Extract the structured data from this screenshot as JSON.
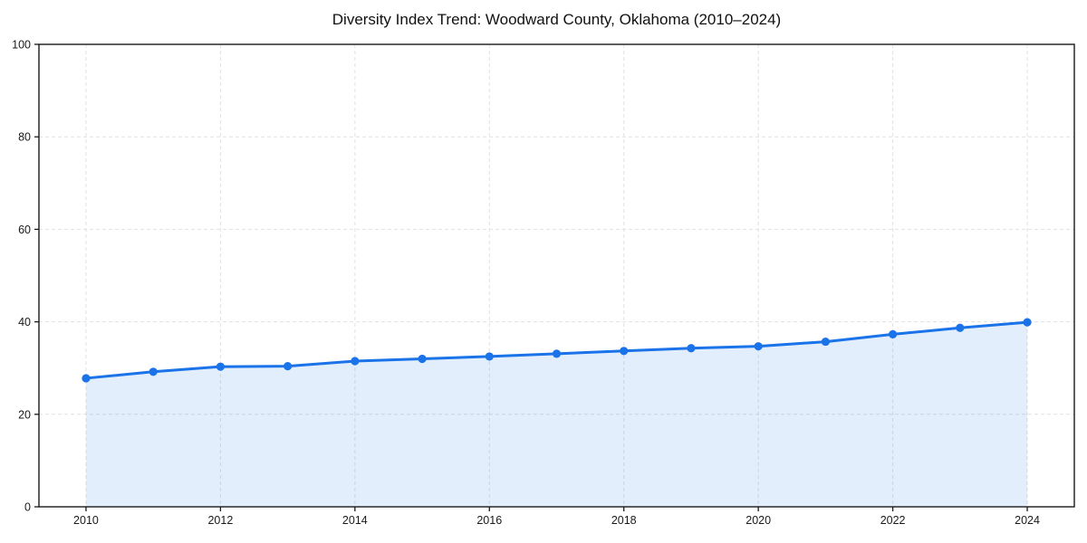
{
  "chart_data": {
    "type": "area",
    "title": "Diversity Index Trend: Woodward County, Oklahoma (2010–2024)",
    "series_name": "Diversity Index",
    "x": [
      2010,
      2011,
      2012,
      2013,
      2014,
      2015,
      2016,
      2017,
      2018,
      2019,
      2020,
      2021,
      2022,
      2023,
      2024
    ],
    "values": [
      27.8,
      29.2,
      30.3,
      30.4,
      31.5,
      32.0,
      32.5,
      33.1,
      33.7,
      34.3,
      34.7,
      35.7,
      37.3,
      38.7,
      39.9
    ],
    "xlabel": "",
    "ylabel": "",
    "xlim": [
      2009.3,
      2024.7
    ],
    "ylim": [
      0,
      100
    ],
    "xticks": [
      2010,
      2012,
      2014,
      2016,
      2018,
      2020,
      2022,
      2024
    ],
    "yticks": [
      0,
      20,
      40,
      60,
      80,
      100
    ],
    "grid": true,
    "grid_style": "dashed",
    "legend": false,
    "line_color": "#1a73e8",
    "marker_color": "#1a73e8",
    "fill_color": "#1a73e8",
    "fill_opacity": 0.12,
    "grid_color": "#e1e1e6",
    "axis_color": "#1a1a1a",
    "tick_label_color": "#1a1a1a",
    "marker": "circle"
  }
}
